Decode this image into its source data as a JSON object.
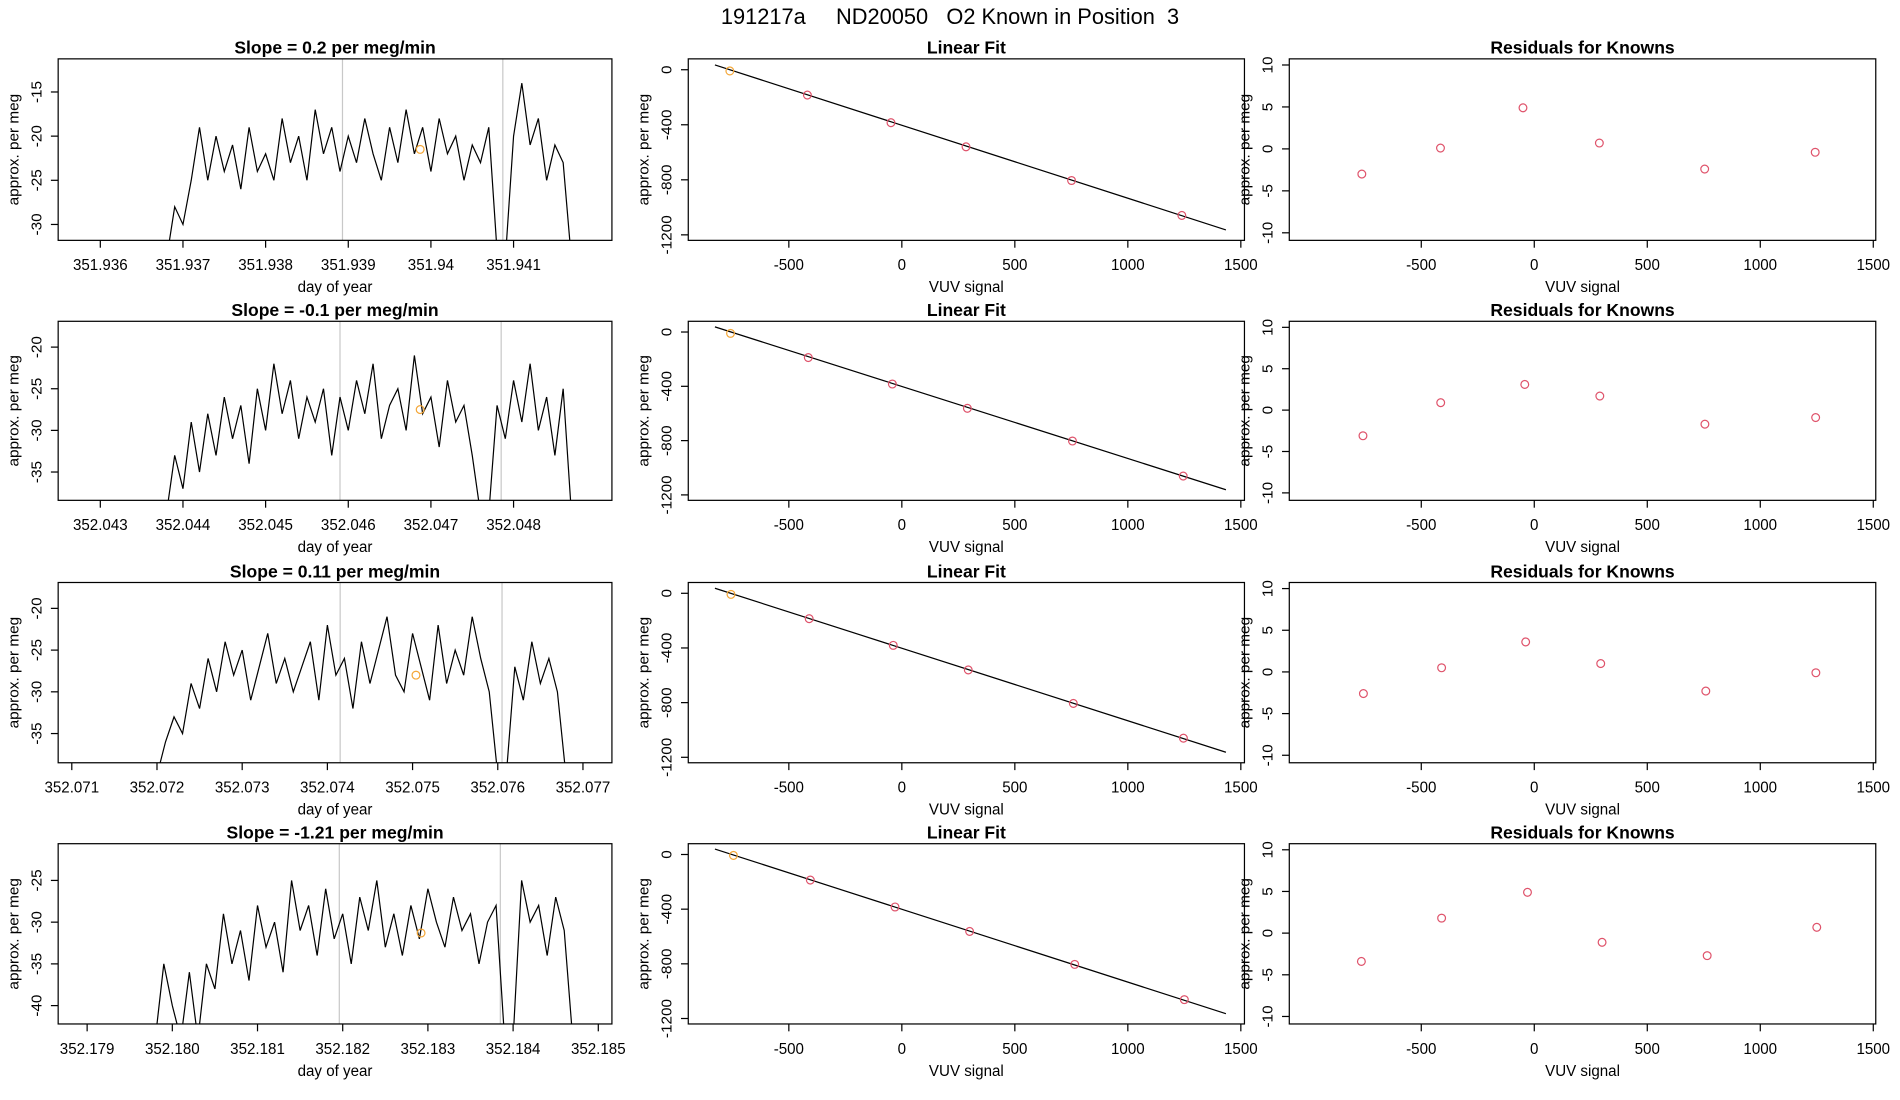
{
  "title": "191217a     ND20050   O2 Known in Position  3",
  "chart_data": [
    {
      "type": "line",
      "title": "Slope =  0.2  per meg/min",
      "xlabel": "day of year",
      "ylabel": "approx. per meg",
      "color": "#000000",
      "x": [
        351.9368,
        351.9369,
        351.937,
        351.9371,
        351.9372,
        351.9373,
        351.9374,
        351.9375,
        351.9376,
        351.9377,
        351.9378,
        351.9379,
        351.938,
        351.9381,
        351.9382,
        351.9383,
        351.9384,
        351.9385,
        351.9386,
        351.9387,
        351.9388,
        351.9389,
        351.939,
        351.9391,
        351.9392,
        351.9393,
        351.9394,
        351.9395,
        351.9396,
        351.9397,
        351.9398,
        351.9399,
        351.94,
        351.9401,
        351.9402,
        351.9403,
        351.9404,
        351.9405,
        351.9406,
        351.9407,
        351.9408,
        351.9409,
        351.941,
        351.9411,
        351.9412,
        351.9413,
        351.9414,
        351.9415,
        351.9416,
        351.9417
      ],
      "values": [
        -34,
        -28,
        -30,
        -25,
        -19,
        -25,
        -20,
        -24,
        -21,
        -26,
        -19,
        -24,
        -22,
        -25,
        -18,
        -23,
        -20,
        -25,
        -17,
        -22,
        -19,
        -24,
        -20,
        -23,
        -18,
        -22,
        -25,
        -19,
        -23,
        -17,
        -22,
        -19,
        -24,
        -18,
        -22,
        -20,
        -25,
        -21,
        -23,
        -19,
        -33,
        -34,
        -20,
        -14,
        -21,
        -18,
        -25,
        -21,
        -23,
        -34
      ],
      "vlines": [
        351.93893,
        351.94087
      ],
      "vline_color": "#c8c8c8",
      "highlight": {
        "x": 351.93987,
        "value": -21.5,
        "color": "#f4a636"
      },
      "xlim": [
        351.93549,
        351.94219
      ],
      "ylim": [
        -31.8,
        -11.25
      ],
      "xticks": [
        351.936,
        351.937,
        351.938,
        351.939,
        351.94,
        351.941
      ],
      "yticks": [
        -30,
        -25,
        -20,
        -15
      ]
    },
    {
      "type": "scatter",
      "title": "Linear Fit",
      "xlabel": "VUV signal",
      "ylabel": "approx. per meg",
      "x": [
        -761,
        -418,
        -48,
        284,
        751,
        1239
      ],
      "values": [
        -9,
        -184,
        -385,
        -560,
        -805,
        -1059
      ],
      "point_colors": [
        "#f4a636",
        "#df536b",
        "#df536b",
        "#df536b",
        "#df536b",
        "#df536b"
      ],
      "fit_line": {
        "x": [
          -827,
          1434
        ],
        "values": [
          35,
          -1164
        ],
        "color": "#000000"
      },
      "xlim": [
        -945,
        1516
      ],
      "ylim": [
        -1240,
        79
      ],
      "xticks": [
        -500,
        0,
        500,
        1000,
        1500
      ],
      "yticks": [
        -1200,
        -800,
        -400,
        0
      ]
    },
    {
      "type": "scatter",
      "title": "Residuals for Knowns",
      "xlabel": "VUV signal",
      "ylabel": "approx. per meg",
      "color": "#df536b",
      "x": [
        -763,
        -415,
        -50,
        288,
        754,
        1243
      ],
      "values": [
        -3,
        0.1,
        4.9,
        0.7,
        -2.4,
        -0.4
      ],
      "xlim": [
        -1084,
        1511
      ],
      "ylim": [
        -10.9,
        10.73
      ],
      "xticks": [
        -500,
        0,
        500,
        1000,
        1500
      ],
      "yticks": [
        -10,
        -5,
        0,
        5,
        10
      ]
    },
    {
      "type": "line",
      "title": "Slope =  -0.1  per meg/min",
      "xlabel": "day of year",
      "ylabel": "approx. per meg",
      "color": "#000000",
      "x": [
        352.0438,
        352.0439,
        352.044,
        352.0441,
        352.0442,
        352.0443,
        352.0444,
        352.0445,
        352.0446,
        352.0447,
        352.0448,
        352.0449,
        352.045,
        352.0451,
        352.0452,
        352.0453,
        352.0454,
        352.0455,
        352.0456,
        352.0457,
        352.0458,
        352.0459,
        352.046,
        352.0461,
        352.0462,
        352.0463,
        352.0464,
        352.0465,
        352.0466,
        352.0467,
        352.0468,
        352.0469,
        352.047,
        352.0471,
        352.0472,
        352.0473,
        352.0474,
        352.0475,
        352.0476,
        352.0477,
        352.0478,
        352.0479,
        352.048,
        352.0481,
        352.0482,
        352.0483,
        352.0484,
        352.0485,
        352.0486,
        352.0487
      ],
      "values": [
        -40,
        -33,
        -37,
        -29,
        -35,
        -28,
        -33,
        -26,
        -31,
        -27,
        -34,
        -25,
        -30,
        -22,
        -28,
        -24,
        -31,
        -26,
        -29,
        -25,
        -33,
        -26,
        -30,
        -24,
        -28,
        -22,
        -31,
        -27,
        -25,
        -30,
        -21,
        -28,
        -26,
        -32,
        -24,
        -29,
        -27,
        -33,
        -40,
        -40,
        -27,
        -31,
        -24,
        -29,
        -22,
        -30,
        -26,
        -33,
        -25,
        -40
      ],
      "vlines": [
        352.0459,
        352.04785
      ],
      "vline_color": "#c8c8c8",
      "highlight": {
        "x": 352.04687,
        "value": -27.5,
        "color": "#f4a636"
      },
      "xlim": [
        352.04249,
        352.04919
      ],
      "ylim": [
        -38.4,
        -16.9
      ],
      "xticks": [
        352.043,
        352.044,
        352.045,
        352.046,
        352.047,
        352.048
      ],
      "yticks": [
        -35,
        -30,
        -25,
        -20
      ]
    },
    {
      "type": "scatter",
      "title": "Linear Fit",
      "xlabel": "VUV signal",
      "ylabel": "approx. per meg",
      "x": [
        -758,
        -414,
        -42,
        290,
        755,
        1245
      ],
      "values": [
        -10,
        -188,
        -383,
        -562,
        -803,
        -1061
      ],
      "point_colors": [
        "#f4a636",
        "#df536b",
        "#df536b",
        "#df536b",
        "#df536b",
        "#df536b"
      ],
      "fit_line": {
        "x": [
          -827,
          1434
        ],
        "values": [
          38,
          -1162
        ],
        "color": "#000000"
      },
      "xlim": [
        -945,
        1516
      ],
      "ylim": [
        -1240,
        79
      ],
      "xticks": [
        -500,
        0,
        500,
        1000,
        1500
      ],
      "yticks": [
        -1200,
        -800,
        -400,
        0
      ]
    },
    {
      "type": "scatter",
      "title": "Residuals for Knowns",
      "xlabel": "VUV signal",
      "ylabel": "approx. per meg",
      "color": "#df536b",
      "x": [
        -758,
        -414,
        -42,
        290,
        755,
        1245
      ],
      "values": [
        -3.1,
        0.9,
        3.1,
        1.7,
        -1.7,
        -0.9
      ],
      "xlim": [
        -1084,
        1511
      ],
      "ylim": [
        -10.9,
        10.73
      ],
      "xticks": [
        -500,
        0,
        500,
        1000,
        1500
      ],
      "yticks": [
        -10,
        -5,
        0,
        5,
        10
      ]
    },
    {
      "type": "line",
      "title": "Slope =  0.11  per meg/min",
      "xlabel": "day of year",
      "ylabel": "approx. per meg",
      "color": "#000000",
      "x": [
        352.072,
        352.0721,
        352.0722,
        352.0723,
        352.0724,
        352.0725,
        352.0726,
        352.0727,
        352.0728,
        352.0729,
        352.073,
        352.0731,
        352.0732,
        352.0733,
        352.0734,
        352.0735,
        352.0736,
        352.0737,
        352.0738,
        352.0739,
        352.074,
        352.0741,
        352.0742,
        352.0743,
        352.0744,
        352.0745,
        352.0746,
        352.0747,
        352.0748,
        352.0749,
        352.075,
        352.0751,
        352.0752,
        352.0753,
        352.0754,
        352.0755,
        352.0756,
        352.0757,
        352.0758,
        352.0759,
        352.076,
        352.0761,
        352.0762,
        352.0763,
        352.0764,
        352.0765,
        352.0766,
        352.0767,
        352.0768
      ],
      "values": [
        -40,
        -36,
        -33,
        -35,
        -29,
        -32,
        -26,
        -30,
        -24,
        -28,
        -25,
        -31,
        -27,
        -23,
        -29,
        -26,
        -30,
        -27,
        -24,
        -31,
        -22,
        -28,
        -26,
        -32,
        -24,
        -29,
        -25,
        -21,
        -28,
        -30,
        -23,
        -27,
        -31,
        -22,
        -29,
        -25,
        -28,
        -21,
        -26,
        -30,
        -40,
        -40,
        -27,
        -31,
        -24,
        -29,
        -26,
        -30,
        -40
      ],
      "vlines": [
        352.07415,
        352.07605
      ],
      "vline_color": "#c8c8c8",
      "highlight": {
        "x": 352.07504,
        "value": -28,
        "color": "#f4a636"
      },
      "xlim": [
        352.07084,
        352.07734
      ],
      "ylim": [
        -38.5,
        -16.9
      ],
      "xticks": [
        352.071,
        352.072,
        352.073,
        352.074,
        352.075,
        352.076,
        352.077
      ],
      "yticks": [
        -35,
        -30,
        -25,
        -20
      ]
    },
    {
      "type": "scatter",
      "title": "Linear Fit",
      "xlabel": "VUV signal",
      "ylabel": "approx. per meg",
      "x": [
        -756,
        -410,
        -38,
        294,
        759,
        1246
      ],
      "values": [
        -8,
        -186,
        -381,
        -561,
        -806,
        -1060
      ],
      "point_colors": [
        "#f4a636",
        "#df536b",
        "#df536b",
        "#df536b",
        "#df536b",
        "#df536b"
      ],
      "fit_line": {
        "x": [
          -827,
          1434
        ],
        "values": [
          37,
          -1163
        ],
        "color": "#000000"
      },
      "xlim": [
        -945,
        1516
      ],
      "ylim": [
        -1240,
        79
      ],
      "xticks": [
        -500,
        0,
        500,
        1000,
        1500
      ],
      "yticks": [
        -1200,
        -800,
        -400,
        0
      ]
    },
    {
      "type": "scatter",
      "title": "Residuals for Knowns",
      "xlabel": "VUV signal",
      "ylabel": "approx. per meg",
      "color": "#df536b",
      "x": [
        -756,
        -410,
        -38,
        294,
        759,
        1246
      ],
      "values": [
        -2.6,
        0.5,
        3.6,
        1.0,
        -2.3,
        -0.1
      ],
      "xlim": [
        -1084,
        1511
      ],
      "ylim": [
        -10.9,
        10.73
      ],
      "xticks": [
        -500,
        0,
        500,
        1000,
        1500
      ],
      "yticks": [
        -10,
        -5,
        0,
        5,
        10
      ]
    },
    {
      "type": "line",
      "title": "Slope =  -1.21  per meg/min",
      "xlabel": "day of year",
      "ylabel": "approx. per meg",
      "color": "#000000",
      "x": [
        352.1798,
        352.1799,
        352.18,
        352.1801,
        352.1802,
        352.1803,
        352.1804,
        352.1805,
        352.1806,
        352.1807,
        352.1808,
        352.1809,
        352.181,
        352.1811,
        352.1812,
        352.1813,
        352.1814,
        352.1815,
        352.1816,
        352.1817,
        352.1818,
        352.1819,
        352.182,
        352.1821,
        352.1822,
        352.1823,
        352.1824,
        352.1825,
        352.1826,
        352.1827,
        352.1828,
        352.1829,
        352.183,
        352.1831,
        352.1832,
        352.1833,
        352.1834,
        352.1835,
        352.1836,
        352.1837,
        352.1838,
        352.1839,
        352.184,
        352.1841,
        352.1842,
        352.1843,
        352.1844,
        352.1845,
        352.1846,
        352.1847
      ],
      "values": [
        -44,
        -35,
        -40,
        -44,
        -36,
        -44,
        -35,
        -38,
        -29,
        -35,
        -31,
        -37,
        -28,
        -33,
        -30,
        -36,
        -25,
        -31,
        -28,
        -34,
        -26,
        -32,
        -29,
        -35,
        -27,
        -31,
        -25,
        -33,
        -29,
        -34,
        -28,
        -32,
        -26,
        -30,
        -33,
        -27,
        -31,
        -29,
        -35,
        -30,
        -28,
        -44,
        -44,
        -25,
        -30,
        -28,
        -34,
        -27,
        -31,
        -44
      ],
      "vlines": [
        352.18196,
        352.18385
      ],
      "vline_color": "#c8c8c8",
      "highlight": {
        "x": 352.18292,
        "value": -31.3,
        "color": "#f4a636"
      },
      "xlim": [
        352.17866,
        352.18516
      ],
      "ylim": [
        -42.2,
        -20.6
      ],
      "xticks": [
        352.179,
        {
          "value": 352.18,
          "label": "352.180"
        },
        352.181,
        352.182,
        352.183,
        352.184,
        352.185
      ],
      "yticks": [
        -40,
        -35,
        -30,
        -25
      ]
    },
    {
      "type": "scatter",
      "title": "Linear Fit",
      "xlabel": "VUV signal",
      "ylabel": "approx. per meg",
      "x": [
        -745,
        -405,
        -30,
        300,
        765,
        1250
      ],
      "values": [
        -7,
        -187,
        -384,
        -563,
        -804,
        -1062
      ],
      "point_colors": [
        "#f4a636",
        "#df536b",
        "#df536b",
        "#df536b",
        "#df536b",
        "#df536b"
      ],
      "fit_line": {
        "x": [
          -827,
          1434
        ],
        "values": [
          40,
          -1165
        ],
        "color": "#000000"
      },
      "xlim": [
        -945,
        1516
      ],
      "ylim": [
        -1240,
        79
      ],
      "xticks": [
        -500,
        0,
        500,
        1000,
        1500
      ],
      "yticks": [
        -1200,
        -800,
        -400,
        0
      ]
    },
    {
      "type": "scatter",
      "title": "Residuals for Knowns",
      "xlabel": "VUV signal",
      "ylabel": "approx. per meg",
      "color": "#df536b",
      "x": [
        -765,
        -410,
        -30,
        300,
        765,
        1250
      ],
      "values": [
        -3.4,
        1.8,
        4.9,
        -1.1,
        -2.7,
        0.7
      ],
      "xlim": [
        -1084,
        1511
      ],
      "ylim": [
        -10.9,
        10.73
      ],
      "xticks": [
        -500,
        0,
        500,
        1000,
        1500
      ],
      "yticks": [
        -10,
        -5,
        0,
        5,
        10
      ]
    }
  ]
}
